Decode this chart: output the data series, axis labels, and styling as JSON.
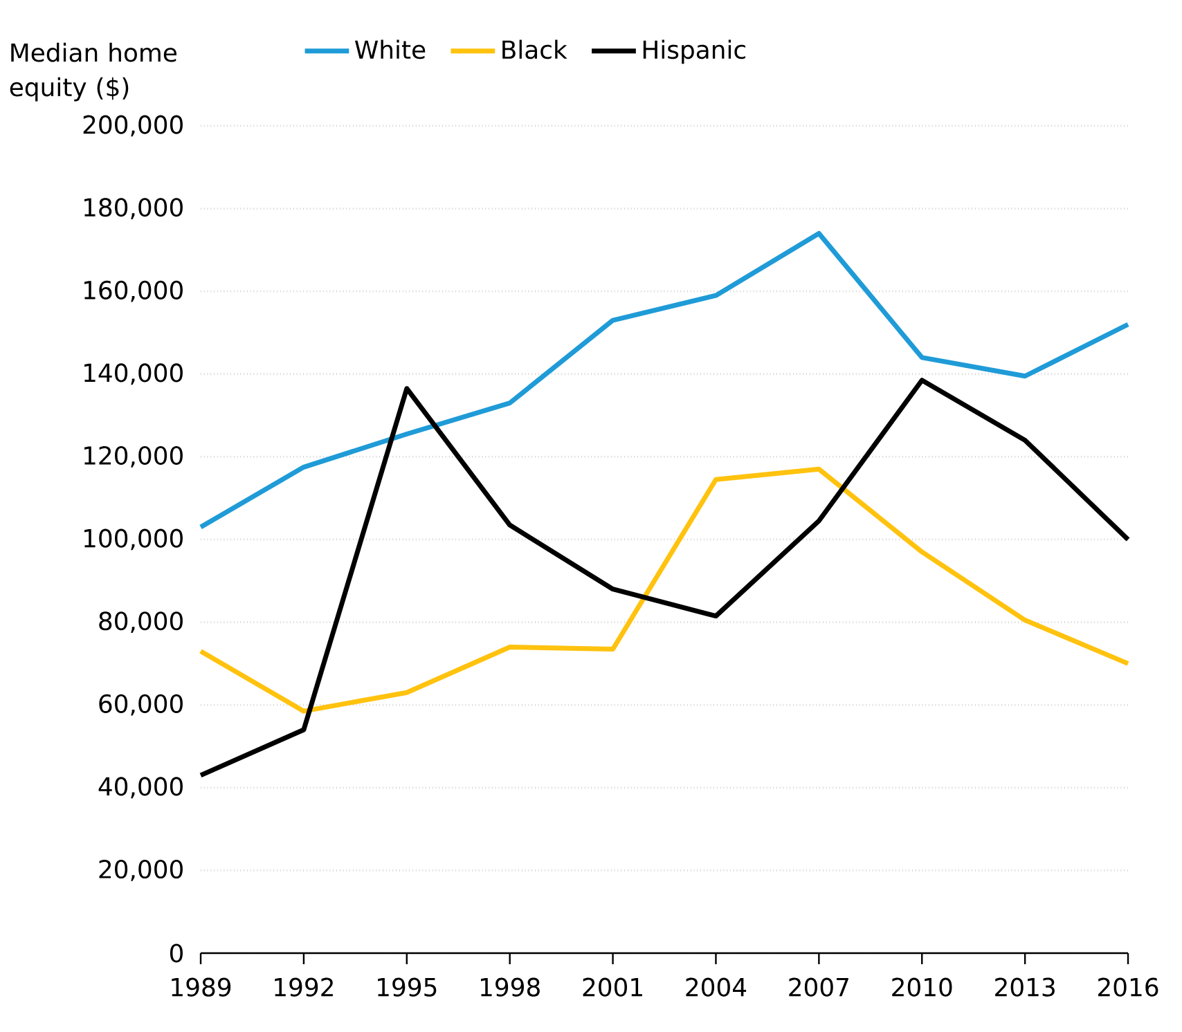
{
  "chart_data": {
    "type": "line",
    "ylabel": "Median home equity ($)",
    "x": [
      1989,
      1992,
      1995,
      1998,
      2001,
      2004,
      2007,
      2010,
      2013,
      2016
    ],
    "xlim": [
      1989,
      2016
    ],
    "xticks": [
      1989,
      1992,
      1995,
      1998,
      2001,
      2004,
      2007,
      2010,
      2013,
      2016
    ],
    "ylim": [
      0,
      200000
    ],
    "yticks": [
      {
        "value": 0,
        "label": "0"
      },
      {
        "value": 20000,
        "label": "20,000"
      },
      {
        "value": 40000,
        "label": "40,000"
      },
      {
        "value": 60000,
        "label": "60,000"
      },
      {
        "value": 80000,
        "label": "80,000"
      },
      {
        "value": 100000,
        "label": "100,000"
      },
      {
        "value": 120000,
        "label": "120,000"
      },
      {
        "value": 140000,
        "label": "140,000"
      },
      {
        "value": 160000,
        "label": "160,000"
      },
      {
        "value": 180000,
        "label": "180,000"
      },
      {
        "value": 200000,
        "label": "200,000"
      }
    ],
    "grid": "y",
    "legend": "top",
    "marker": "none",
    "line_style": "solid",
    "series": [
      {
        "name": "White",
        "color": "#1f9bd7",
        "values": [
          103000,
          117500,
          125500,
          133000,
          153000,
          159000,
          174000,
          144000,
          139500,
          152000
        ]
      },
      {
        "name": "Black",
        "color": "#ffc20e",
        "values": [
          73000,
          58500,
          63000,
          74000,
          73500,
          114500,
          117000,
          97000,
          80500,
          70000
        ]
      },
      {
        "name": "Hispanic",
        "color": "#000000",
        "values": [
          43000,
          54000,
          136500,
          103500,
          88000,
          81500,
          104500,
          138500,
          124000,
          100000
        ]
      }
    ]
  }
}
